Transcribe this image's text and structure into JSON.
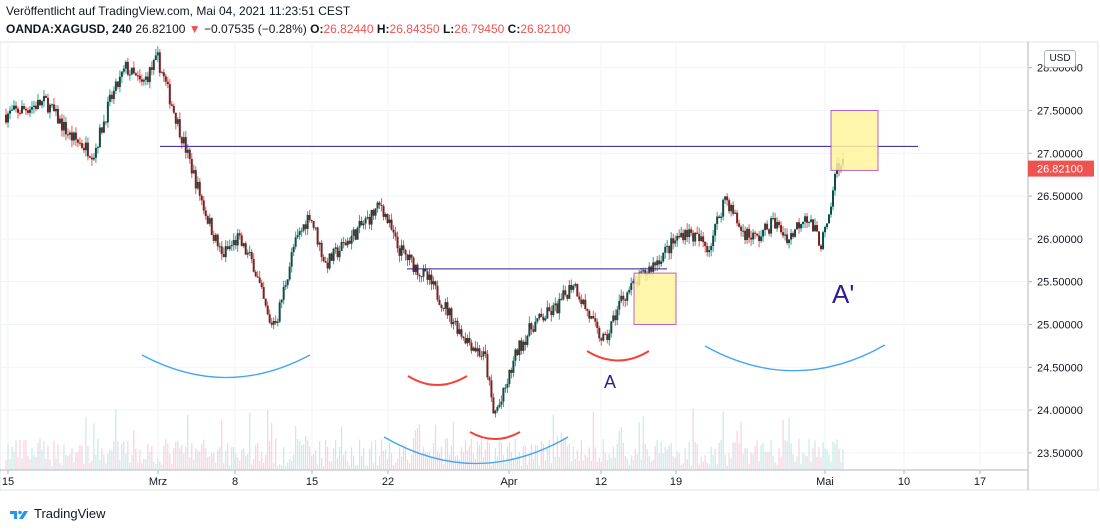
{
  "header": {
    "published": "Veröffentlicht auf TradingView.com, Mai 04, 2021 11:23:51 CEST",
    "symbol": "OANDA:XAGUSD, 240",
    "last": "26.82100",
    "change": "−0.07535 (−0.28%)",
    "open_label": "O:",
    "open": "26.82440",
    "high_label": "H:",
    "high": "26.84350",
    "low_label": "L:",
    "low": "26.79450",
    "close_label": "C:",
    "close": "26.82100"
  },
  "currency": "USD",
  "brand": "TradingView",
  "colors": {
    "up": "#26a69a",
    "up_body": "#0f4c46",
    "down": "#ef5350",
    "down_body": "#7b1f1f",
    "line": "#311b92",
    "box": "#fff59d",
    "arc_blue": "#42a5f5",
    "arc_red": "#f44336",
    "annotation": "#311b92"
  },
  "chart_data": {
    "type": "candlestick",
    "ylim": [
      23.3,
      28.3
    ],
    "y_ticks": [
      "28.00000",
      "27.50000",
      "27.00000",
      "26.50000",
      "26.00000",
      "25.50000",
      "25.00000",
      "24.50000",
      "24.00000",
      "23.50000"
    ],
    "x_ticks": [
      "15",
      "Mrz",
      "8",
      "15",
      "22",
      "Apr",
      "12",
      "19",
      "Mai",
      "10",
      "17"
    ],
    "price_path": [
      [
        0,
        27.45
      ],
      [
        5,
        27.6
      ],
      [
        8,
        27.2
      ],
      [
        11,
        27.0
      ],
      [
        13,
        27.6
      ],
      [
        15,
        28.0
      ],
      [
        17,
        27.8
      ],
      [
        19,
        28.1
      ],
      [
        21,
        27.5
      ],
      [
        23,
        26.9
      ],
      [
        25,
        26.3
      ],
      [
        27,
        25.8
      ],
      [
        29,
        26.0
      ],
      [
        31,
        25.7
      ],
      [
        33,
        25.0
      ],
      [
        34,
        25.1
      ],
      [
        36,
        25.9
      ],
      [
        38,
        26.3
      ],
      [
        40,
        25.7
      ],
      [
        42,
        25.9
      ],
      [
        45,
        26.2
      ],
      [
        47,
        26.4
      ],
      [
        49,
        25.9
      ],
      [
        51,
        25.7
      ],
      [
        53,
        25.5
      ],
      [
        55,
        25.2
      ],
      [
        57,
        24.9
      ],
      [
        60,
        24.6
      ],
      [
        61,
        23.95
      ],
      [
        62,
        24.1
      ],
      [
        64,
        24.7
      ],
      [
        66,
        25.0
      ],
      [
        69,
        25.2
      ],
      [
        71,
        25.5
      ],
      [
        72,
        25.3
      ],
      [
        74,
        24.9
      ],
      [
        75,
        24.8
      ],
      [
        77,
        25.3
      ],
      [
        79,
        25.5
      ],
      [
        81,
        25.7
      ],
      [
        83,
        25.9
      ],
      [
        85,
        26.1
      ],
      [
        88,
        25.9
      ],
      [
        90,
        26.5
      ],
      [
        92,
        26.1
      ],
      [
        94,
        26.0
      ],
      [
        96,
        26.2
      ],
      [
        98,
        26.0
      ],
      [
        100,
        26.3
      ],
      [
        102,
        25.95
      ],
      [
        103,
        26.2
      ],
      [
        104,
        26.9
      ],
      [
        105,
        26.85
      ]
    ],
    "volume_profile": "low bars along bottom of price pane",
    "annotations": [
      {
        "type": "horizontal-line",
        "price": 27.08,
        "from": "Mrz",
        "note": "resistance"
      },
      {
        "type": "horizontal-line",
        "price": 25.65,
        "from": "22",
        "to": "19"
      },
      {
        "type": "rectangle",
        "price_top": 25.6,
        "price_bottom": 25.0,
        "at": "Apr 19"
      },
      {
        "type": "rectangle",
        "price_top": 27.5,
        "price_bottom": 26.8,
        "at": "Mai 3"
      },
      {
        "type": "text",
        "text": "A",
        "at": "Apr 13"
      },
      {
        "type": "text",
        "text": "A'",
        "at": "Mai 3"
      },
      {
        "type": "arc",
        "color": "blue",
        "count": 3
      },
      {
        "type": "arc",
        "color": "red",
        "count": 3
      }
    ]
  }
}
